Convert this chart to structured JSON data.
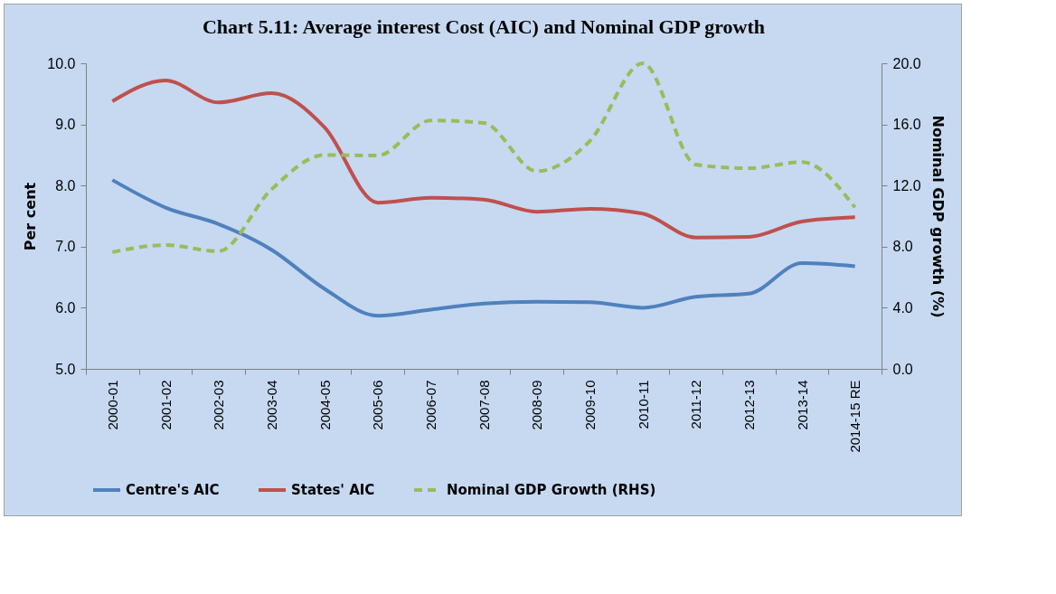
{
  "chart_data": {
    "type": "line",
    "title": "Chart  5.11: Average interest Cost  (AIC)  and  Nominal  GDP growth",
    "ylabel": "Per cent",
    "y2label": "Nominal GDP growth (%)",
    "categories": [
      "2000-01",
      "2001-02",
      "2002-03",
      "2003-04",
      "2004-05",
      "2005-06",
      "2006-07",
      "2007-08",
      "2008-09",
      "2009-10",
      "2010-11",
      "2011-12",
      "2012-13",
      "2013-14",
      "2014-15 RE"
    ],
    "series": [
      {
        "name": "Centre's  AIC",
        "color": "#4f81bd",
        "line_style": "solid",
        "values": [
          8.09,
          7.64,
          7.37,
          6.95,
          6.31,
          5.87,
          5.97,
          6.07,
          6.1,
          6.09,
          6.0,
          6.18,
          6.23,
          6.73,
          6.68
        ]
      },
      {
        "name": "States'  AIC",
        "color": "#c0504d",
        "line_style": "solid",
        "values": [
          9.38,
          9.72,
          9.36,
          9.51,
          8.95,
          7.72,
          7.8,
          7.77,
          7.57,
          7.62,
          7.54,
          7.15,
          7.16,
          7.41,
          7.48
        ]
      },
      {
        "name": "Nominal GDP Growth (RHS)",
        "color": "#9bbb59",
        "line_style": "dashed",
        "axis": "y2",
        "values": [
          7.64,
          8.1,
          7.7,
          11.75,
          14.0,
          13.96,
          16.26,
          16.1,
          12.94,
          14.91,
          20.0,
          13.37,
          13.13,
          13.53,
          10.57
        ]
      }
    ],
    "ylim": [
      5,
      10
    ],
    "yticks": [
      {
        "value": 5,
        "label": "5.0"
      },
      {
        "value": 6,
        "label": "6.0"
      },
      {
        "value": 7,
        "label": "7.0"
      },
      {
        "value": 8,
        "label": "8.0"
      },
      {
        "value": 9,
        "label": "9.0"
      },
      {
        "value": 10,
        "label": "10.0"
      }
    ],
    "y2lim": [
      0,
      20
    ],
    "y2ticks": [
      {
        "value": 0,
        "label": "0.0"
      },
      {
        "value": 4,
        "label": "4.0"
      },
      {
        "value": 8,
        "label": "8.0"
      },
      {
        "value": 12,
        "label": "12.0"
      },
      {
        "value": 16,
        "label": "16.0"
      },
      {
        "value": 20,
        "label": "20.0"
      }
    ],
    "grid": false,
    "legend": "bottom",
    "marker": "none"
  }
}
